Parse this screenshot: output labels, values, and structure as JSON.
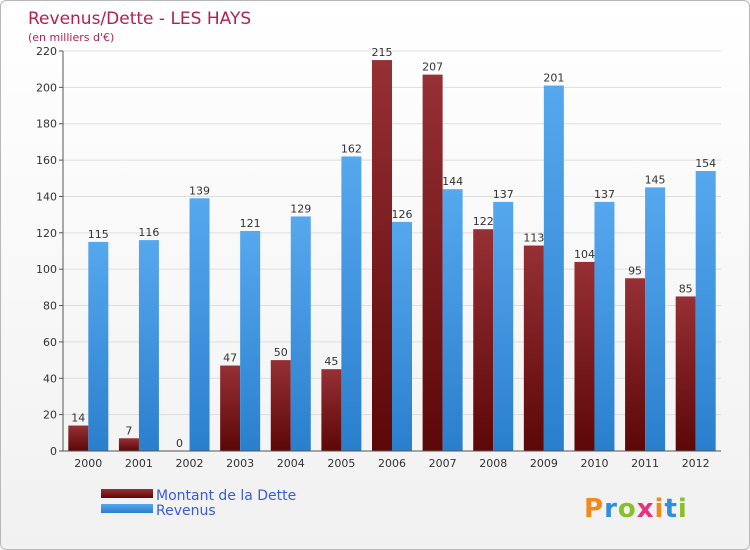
{
  "chart_data": {
    "type": "bar",
    "title": "Revenus/Dette - LES HAYS",
    "subtitle": "(en milliers d'€)",
    "xlabel": "",
    "ylabel": "",
    "ylim": [
      0,
      220
    ],
    "yticks": [
      0,
      20,
      40,
      60,
      80,
      100,
      120,
      140,
      160,
      180,
      200,
      220
    ],
    "categories": [
      "2000",
      "2001",
      "2002",
      "2003",
      "2004",
      "2005",
      "2006",
      "2007",
      "2008",
      "2009",
      "2010",
      "2011",
      "2012"
    ],
    "series": [
      {
        "name": "Montant de la Dette",
        "color": "#7a1515",
        "values": [
          14,
          7,
          0,
          47,
          50,
          45,
          215,
          207,
          122,
          113,
          104,
          95,
          85
        ]
      },
      {
        "name": "Revenus",
        "color": "#3a93df",
        "values": [
          115,
          116,
          139,
          121,
          129,
          162,
          126,
          144,
          137,
          201,
          137,
          145,
          154
        ]
      }
    ],
    "grid": true,
    "legend": "bottom-left"
  },
  "brand": {
    "logo_text": "Proxiti",
    "colors": [
      "#f08a1c",
      "#2f8fdc",
      "#8bbf2a",
      "#e4337c",
      "#f08a1c",
      "#2f8fdc",
      "#8bbf2a"
    ]
  }
}
